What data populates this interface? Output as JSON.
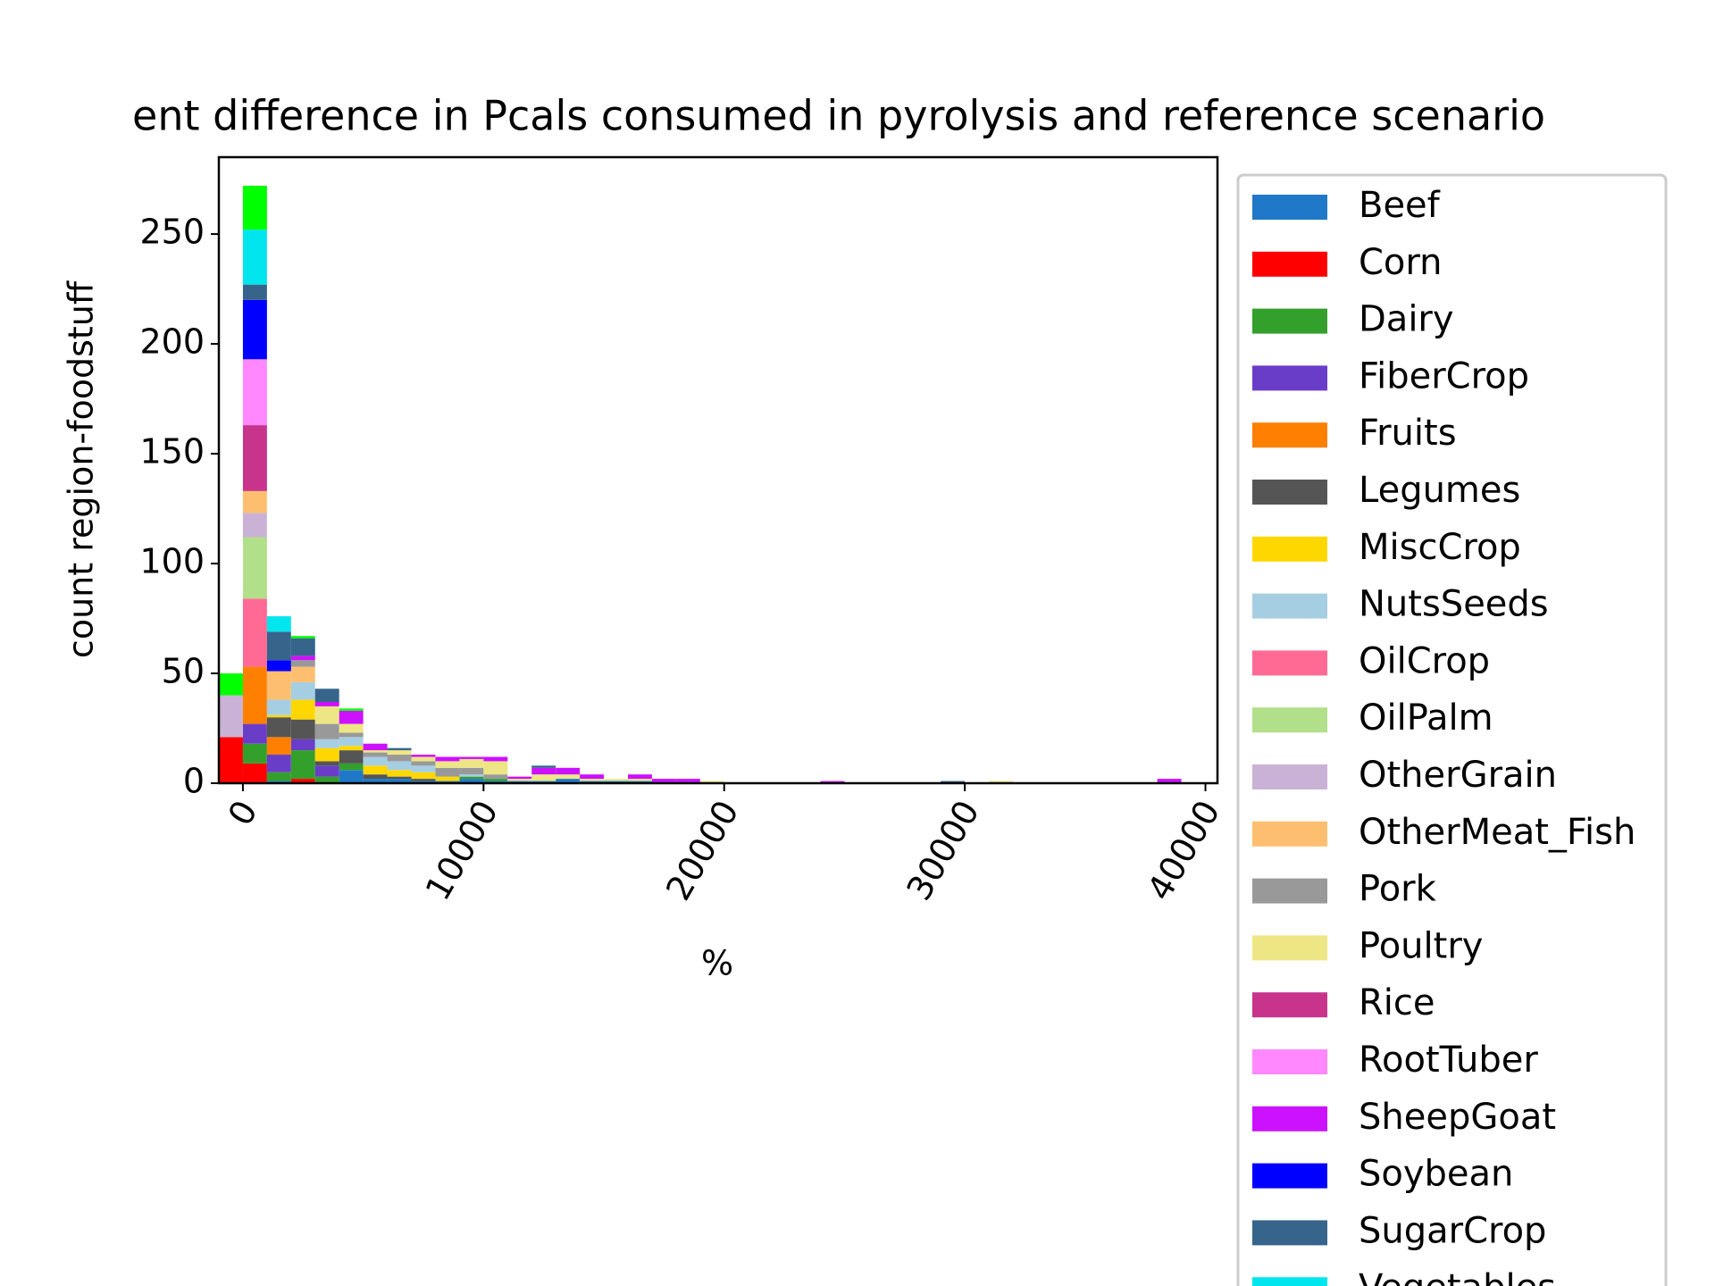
{
  "chart_data": {
    "type": "stacked_histogram",
    "title": "ent difference in Pcals consumed in pyrolysis and reference scenario",
    "x_label": "%",
    "y_label": "count region-foodstuff",
    "bins": [
      -1000,
      0,
      1000,
      2000,
      3000,
      4000,
      5000,
      6000,
      7000,
      8000,
      9000,
      10000,
      11000,
      12000,
      13000,
      14000,
      15000,
      16000,
      17000,
      18000,
      19000,
      20000,
      21000,
      22000,
      23000,
      24000,
      25000,
      26000,
      27000,
      28000,
      29000,
      30000,
      31000,
      32000,
      33000,
      34000,
      35000,
      36000,
      37000,
      38000,
      39000,
      40000
    ],
    "xlim": [
      -1000,
      40500
    ],
    "xticks": [
      0,
      10000,
      20000,
      30000,
      40000
    ],
    "ylim": [
      0,
      285
    ],
    "yticks": [
      0,
      50,
      100,
      150,
      200,
      250
    ],
    "series": [
      {
        "name": "Beef",
        "color": "#2078c8",
        "values": [
          0,
          0,
          1,
          0,
          0,
          6,
          2,
          2,
          1,
          1,
          2,
          1,
          1,
          1,
          2,
          1,
          1,
          1,
          0,
          0,
          0,
          0,
          0,
          0,
          0,
          0,
          0,
          0,
          0,
          0,
          0,
          0,
          0,
          0,
          0,
          0,
          0,
          0,
          0,
          0,
          0
        ]
      },
      {
        "name": "Corn",
        "color": "#ff0000",
        "values": [
          21,
          9,
          0,
          2,
          0,
          0,
          0,
          0,
          0,
          0,
          0,
          0,
          0,
          0,
          0,
          0,
          0,
          0,
          0,
          0,
          0,
          0,
          0,
          0,
          0,
          0,
          0,
          0,
          0,
          0,
          0,
          0,
          0,
          0,
          0,
          0,
          0,
          0,
          0,
          0,
          0
        ]
      },
      {
        "name": "Dairy",
        "color": "#33a02c",
        "values": [
          0,
          9,
          4,
          13,
          3,
          3,
          0,
          0,
          0,
          0,
          1,
          1,
          0,
          0,
          0,
          0,
          0,
          0,
          0,
          0,
          0,
          0,
          0,
          0,
          0,
          0,
          0,
          0,
          0,
          0,
          0,
          0,
          0,
          0,
          0,
          0,
          0,
          0,
          0,
          0,
          0
        ]
      },
      {
        "name": "FiberCrop",
        "color": "#6a3dc9",
        "values": [
          0,
          9,
          8,
          5,
          5,
          0,
          0,
          0,
          0,
          0,
          0,
          0,
          0,
          0,
          0,
          0,
          0,
          0,
          0,
          0,
          0,
          0,
          0,
          0,
          0,
          0,
          0,
          0,
          0,
          0,
          0,
          0,
          0,
          0,
          0,
          0,
          0,
          0,
          0,
          0,
          0
        ]
      },
      {
        "name": "Fruits",
        "color": "#ff7f00",
        "values": [
          0,
          26,
          8,
          0,
          0,
          0,
          0,
          0,
          0,
          0,
          0,
          0,
          0,
          0,
          0,
          0,
          0,
          0,
          0,
          0,
          0,
          0,
          0,
          0,
          0,
          0,
          0,
          0,
          0,
          0,
          0,
          0,
          0,
          0,
          0,
          0,
          0,
          0,
          0,
          0,
          0
        ]
      },
      {
        "name": "Legumes",
        "color": "#555555",
        "values": [
          0,
          0,
          9,
          9,
          2,
          6,
          2,
          1,
          1,
          0,
          0,
          0,
          0,
          0,
          0,
          0,
          0,
          0,
          0,
          0,
          0,
          0,
          0,
          0,
          0,
          0,
          0,
          0,
          0,
          0,
          0,
          0,
          0,
          0,
          0,
          0,
          0,
          0,
          0,
          0,
          0
        ]
      },
      {
        "name": "MiscCrop",
        "color": "#ffd700",
        "values": [
          0,
          0,
          1,
          9,
          6,
          2,
          4,
          3,
          3,
          2,
          0,
          0,
          0,
          0,
          0,
          0,
          0,
          0,
          0,
          0,
          0,
          0,
          0,
          0,
          0,
          0,
          0,
          0,
          0,
          0,
          0,
          0,
          0,
          0,
          0,
          0,
          0,
          0,
          0,
          0,
          0
        ]
      },
      {
        "name": "NutsSeeds",
        "color": "#a6cee3",
        "values": [
          0,
          0,
          7,
          8,
          4,
          4,
          4,
          4,
          3,
          0,
          1,
          0,
          0,
          0,
          0,
          0,
          0,
          0,
          0,
          0,
          0,
          0,
          0,
          0,
          0,
          0,
          0,
          0,
          0,
          0,
          0,
          0,
          0,
          0,
          0,
          0,
          0,
          0,
          0,
          0,
          0
        ]
      },
      {
        "name": "OilCrop",
        "color": "#ff6a95",
        "values": [
          0,
          31,
          0,
          0,
          0,
          0,
          0,
          0,
          0,
          0,
          0,
          0,
          0,
          0,
          0,
          0,
          0,
          0,
          0,
          0,
          0,
          0,
          0,
          0,
          0,
          0,
          0,
          0,
          0,
          0,
          0,
          0,
          0,
          0,
          0,
          0,
          0,
          0,
          0,
          0,
          0
        ]
      },
      {
        "name": "OilPalm",
        "color": "#b2df8a",
        "values": [
          0,
          28,
          0,
          0,
          0,
          0,
          0,
          0,
          0,
          0,
          0,
          0,
          0,
          0,
          0,
          0,
          0,
          0,
          0,
          0,
          0,
          0,
          0,
          0,
          0,
          0,
          0,
          0,
          0,
          0,
          0,
          0,
          0,
          0,
          0,
          0,
          0,
          0,
          0,
          0,
          0
        ]
      },
      {
        "name": "OtherGrain",
        "color": "#cab2d6",
        "values": [
          19,
          11,
          0,
          0,
          0,
          0,
          0,
          0,
          0,
          0,
          0,
          0,
          0,
          0,
          0,
          0,
          0,
          0,
          0,
          0,
          0,
          0,
          0,
          0,
          0,
          0,
          0,
          0,
          0,
          0,
          0,
          0,
          0,
          0,
          0,
          0,
          0,
          0,
          0,
          0,
          0
        ]
      },
      {
        "name": "OtherMeat_Fish",
        "color": "#fdbf6f",
        "values": [
          0,
          10,
          13,
          7,
          0,
          0,
          0,
          0,
          0,
          0,
          0,
          0,
          0,
          0,
          0,
          0,
          0,
          0,
          0,
          0,
          0,
          0,
          0,
          0,
          0,
          0,
          0,
          0,
          0,
          0,
          0,
          0,
          0,
          0,
          0,
          0,
          0,
          0,
          0,
          0,
          0
        ]
      },
      {
        "name": "Pork",
        "color": "#999999",
        "values": [
          0,
          0,
          0,
          3,
          7,
          2,
          2,
          3,
          2,
          4,
          3,
          2,
          0,
          0,
          0,
          0,
          0,
          0,
          0,
          0,
          0,
          0,
          0,
          0,
          0,
          0,
          0,
          0,
          0,
          0,
          0,
          0,
          0,
          0,
          0,
          0,
          0,
          0,
          0,
          0,
          0
        ]
      },
      {
        "name": "Poultry",
        "color": "#eee685",
        "values": [
          0,
          0,
          0,
          0,
          8,
          4,
          1,
          2,
          2,
          3,
          4,
          6,
          1,
          3,
          2,
          1,
          1,
          1,
          0,
          0,
          1,
          0,
          0,
          0,
          0,
          0,
          0,
          0,
          0,
          0,
          0,
          0,
          1,
          0,
          0,
          0,
          0,
          0,
          0,
          0,
          0
        ]
      },
      {
        "name": "Rice",
        "color": "#c8348c",
        "values": [
          0,
          30,
          0,
          0,
          0,
          0,
          0,
          0,
          0,
          0,
          0,
          0,
          0,
          0,
          0,
          0,
          0,
          0,
          0,
          0,
          0,
          0,
          0,
          0,
          0,
          0,
          0,
          0,
          0,
          0,
          0,
          0,
          0,
          0,
          0,
          0,
          0,
          0,
          0,
          0,
          0
        ]
      },
      {
        "name": "RootTuber",
        "color": "#ff88ff",
        "values": [
          0,
          30,
          0,
          0,
          0,
          0,
          0,
          0,
          0,
          0,
          0,
          0,
          0,
          0,
          0,
          0,
          0,
          0,
          0,
          0,
          0,
          0,
          0,
          0,
          0,
          0,
          0,
          0,
          0,
          0,
          0,
          0,
          0,
          0,
          0,
          0,
          0,
          0,
          0,
          0,
          0
        ]
      },
      {
        "name": "SheepGoat",
        "color": "#cc11ff",
        "values": [
          0,
          0,
          0,
          2,
          2,
          6,
          3,
          0,
          1,
          2,
          1,
          2,
          1,
          3,
          3,
          2,
          0,
          2,
          2,
          2,
          0,
          0,
          0,
          0,
          0,
          1,
          0,
          0,
          0,
          0,
          0,
          0,
          0,
          0,
          0,
          0,
          0,
          0,
          0,
          2,
          0
        ]
      },
      {
        "name": "Soybean",
        "color": "#0000ff",
        "values": [
          0,
          27,
          5,
          0,
          0,
          0,
          0,
          0,
          0,
          0,
          0,
          0,
          0,
          0,
          0,
          0,
          0,
          0,
          0,
          0,
          0,
          0,
          0,
          0,
          0,
          0,
          0,
          0,
          0,
          0,
          0,
          0,
          0,
          0,
          0,
          0,
          0,
          0,
          0,
          0,
          0
        ]
      },
      {
        "name": "SugarCrop",
        "color": "#36648b",
        "values": [
          0,
          7,
          13,
          8,
          6,
          0,
          0,
          1,
          0,
          0,
          0,
          0,
          0,
          1,
          0,
          0,
          0,
          0,
          0,
          0,
          0,
          0,
          0,
          0,
          0,
          0,
          0,
          0,
          0,
          0,
          1,
          0,
          0,
          0,
          0,
          0,
          0,
          0,
          0,
          0,
          0
        ]
      },
      {
        "name": "Vegetables",
        "color": "#00e5ee",
        "values": [
          0,
          25,
          7,
          0,
          0,
          0,
          0,
          0,
          0,
          0,
          0,
          0,
          0,
          0,
          0,
          0,
          0,
          0,
          0,
          0,
          0,
          0,
          0,
          0,
          0,
          0,
          0,
          0,
          0,
          0,
          0,
          0,
          0,
          0,
          0,
          0,
          0,
          0,
          0,
          0,
          0
        ]
      },
      {
        "color": "#00ff00",
        "values": [
          10,
          20,
          0,
          1,
          0,
          1,
          0,
          0,
          0,
          0,
          0,
          0,
          0,
          0,
          0,
          0,
          0,
          0,
          0,
          0,
          0,
          0,
          0,
          0,
          0,
          0,
          0,
          0,
          0,
          0,
          0,
          0,
          0,
          0,
          0,
          0,
          0,
          0,
          0,
          0,
          0
        ]
      }
    ]
  }
}
